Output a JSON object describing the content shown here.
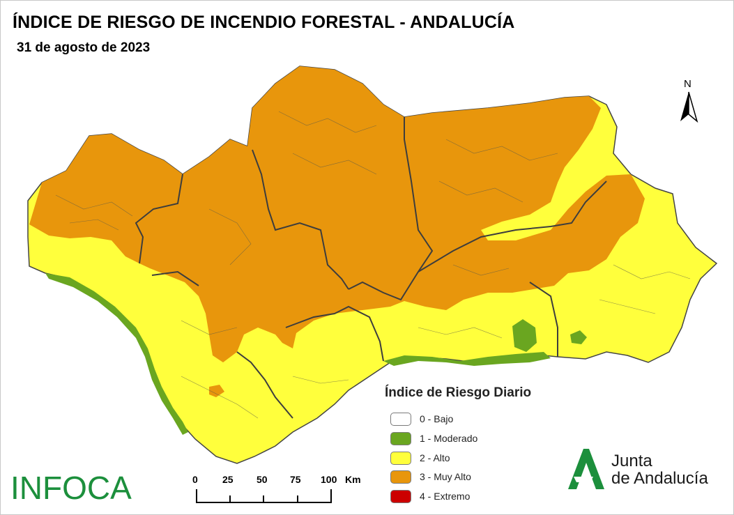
{
  "header": {
    "title": "ÍNDICE DE RIESGO DE INCENDIO FORESTAL - ANDALUCÍA",
    "date": "31 de agosto de 2023"
  },
  "north_arrow": {
    "label": "N"
  },
  "legend": {
    "title": "Índice de Riesgo Diario",
    "items": [
      {
        "label": "0 - Bajo",
        "color": "#ffffff"
      },
      {
        "label": "1 - Moderado",
        "color": "#6aa620"
      },
      {
        "label": "2 - Alto",
        "color": "#ffff3c"
      },
      {
        "label": "3 - Muy Alto",
        "color": "#e8960c"
      },
      {
        "label": "4 - Extremo",
        "color": "#cc0000"
      }
    ]
  },
  "scale_bar": {
    "ticks": [
      "0",
      "25",
      "50",
      "75",
      "100"
    ],
    "unit": "Km"
  },
  "logos": {
    "infoca": "INFOCA",
    "junta_line1": "Junta",
    "junta_line2": "de Andalucía",
    "junta_color": "#1c8f3c"
  },
  "map_colors": {
    "orange": "#e8960c",
    "yellow": "#ffff3c",
    "green": "#6aa620",
    "border": "#4a4a3a"
  }
}
